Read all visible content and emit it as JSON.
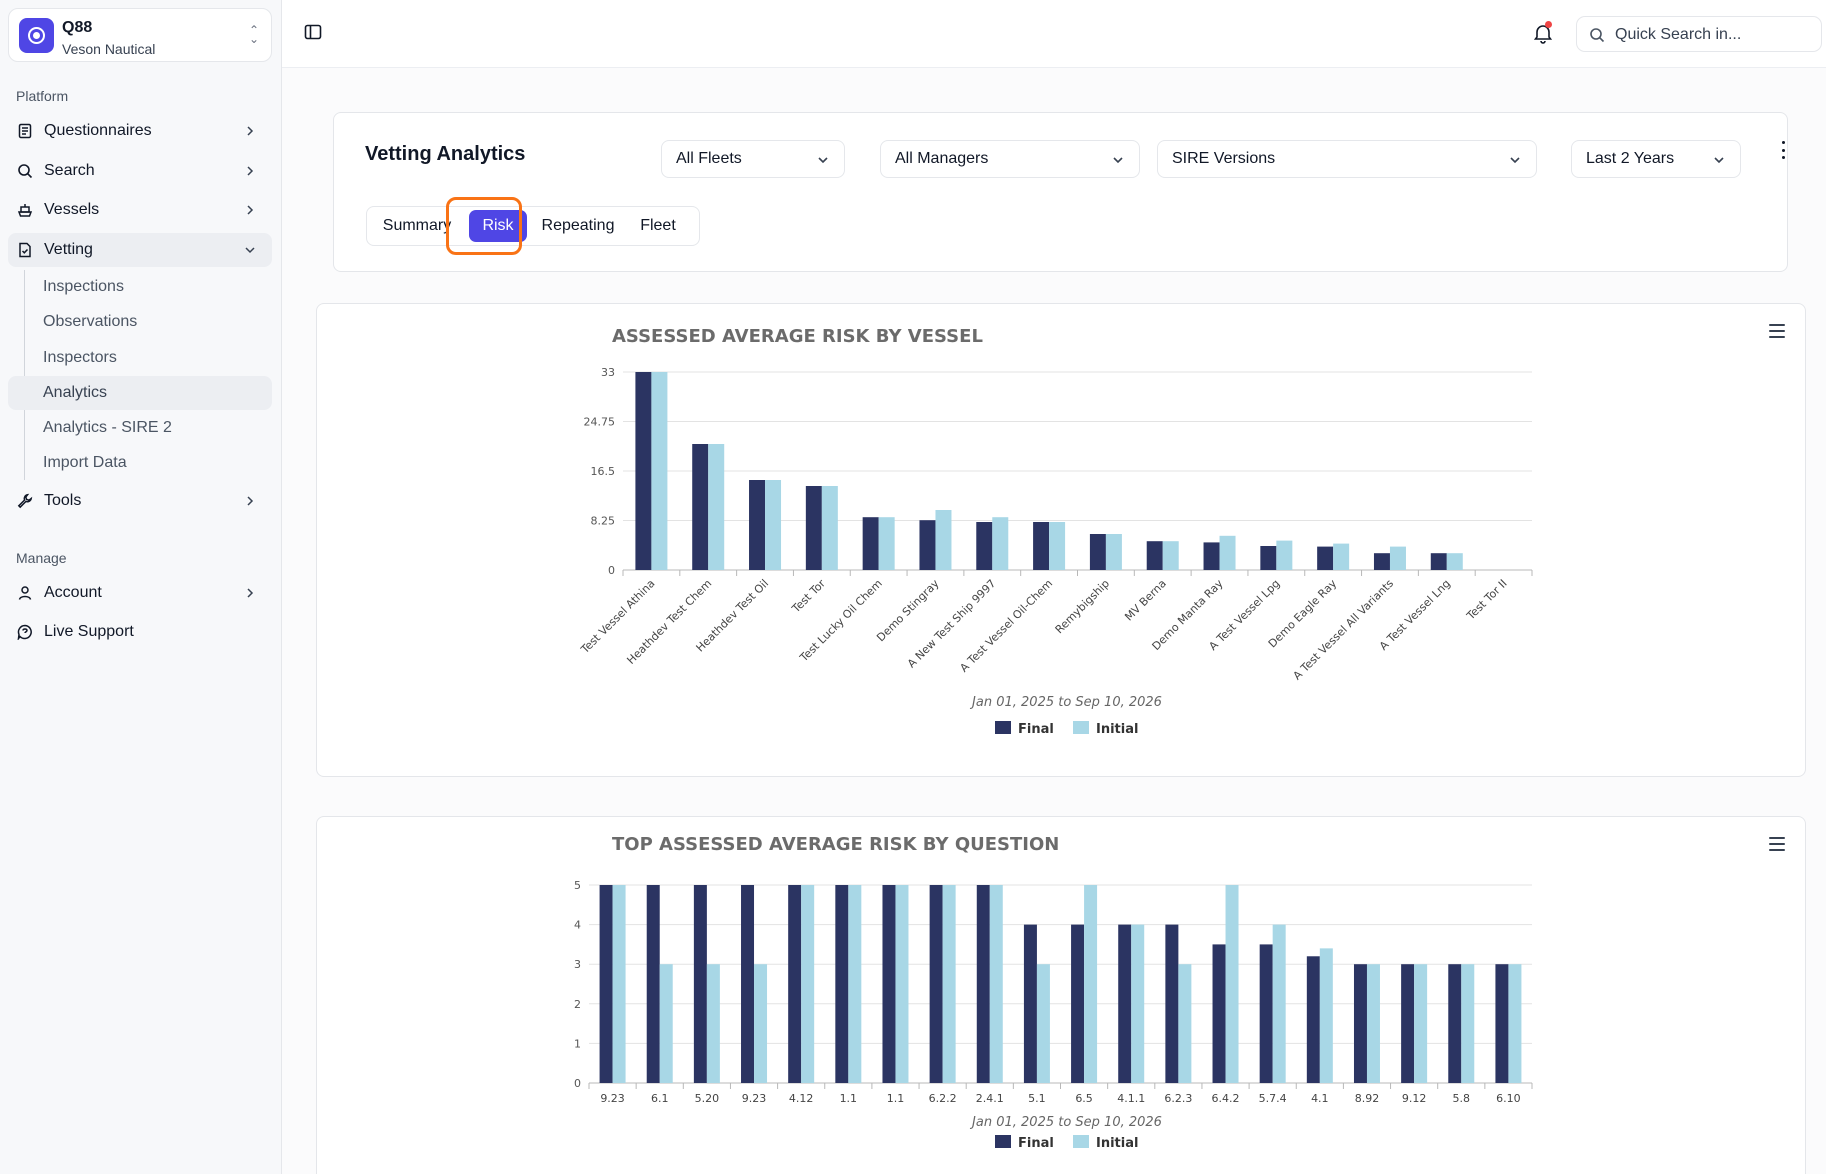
{
  "org": {
    "name": "Q88",
    "subtitle": "Veson Nautical"
  },
  "sidebar": {
    "platform_label": "Platform",
    "manage_label": "Manage",
    "items": [
      {
        "label": "Questionnaires"
      },
      {
        "label": "Search"
      },
      {
        "label": "Vessels"
      },
      {
        "label": "Vetting"
      },
      {
        "label": "Tools"
      },
      {
        "label": "Account"
      },
      {
        "label": "Live Support"
      }
    ],
    "vetting_children": [
      "Inspections",
      "Observations",
      "Inspectors",
      "Analytics",
      "Analytics - SIRE 2",
      "Import Data"
    ]
  },
  "topbar": {
    "search_placeholder": "Quick Search in..."
  },
  "page": {
    "title": "Vetting Analytics",
    "filters": [
      "All Fleets",
      "All Managers",
      "SIRE Versions",
      "Last 2 Years"
    ],
    "tabs": [
      "Summary",
      "Risk",
      "Repeating",
      "Fleet"
    ],
    "active_tab": "Risk"
  },
  "colors": {
    "final": "#2b3462",
    "initial": "#a8d7e6",
    "accent": "#4f46e5",
    "highlight": "#f97316"
  },
  "chart_data": [
    {
      "type": "bar",
      "title": "ASSESSED AVERAGE RISK BY VESSEL",
      "subtitle": "Jan 01, 2025 to Sep 10, 2026",
      "categories": [
        "Test Vessel Athina",
        "Heathdev Test Chem",
        "Heathdev Test Oil",
        "Test Tor",
        "Test Lucky Oil Chem",
        "Demo Stingray",
        "A New Test Ship 9997",
        "A Test Vessel Oil-Chem",
        "Remybigship",
        "MV Berna",
        "Demo Manta Ray",
        "A Test Vessel Lpg",
        "Demo Eagle Ray",
        "A Test Vessel All Variants",
        "A Test Vessel Lng",
        "Test Tor II"
      ],
      "series": [
        {
          "name": "Final",
          "values": [
            33,
            21,
            15,
            14,
            8.8,
            8.3,
            8,
            8,
            6,
            4.8,
            4.6,
            4,
            3.9,
            2.8,
            2.8,
            0
          ]
        },
        {
          "name": "Initial",
          "values": [
            33,
            21,
            15,
            14,
            8.8,
            10,
            8.8,
            8,
            6,
            4.8,
            5.7,
            4.9,
            4.4,
            3.9,
            2.8,
            0
          ]
        }
      ],
      "yticks": [
        "0",
        "8.25",
        "16.5",
        "24.75",
        "33"
      ],
      "ylim": [
        0,
        33
      ],
      "legend": "bottom-center",
      "grid": true
    },
    {
      "type": "bar",
      "title": "TOP ASSESSED AVERAGE RISK BY QUESTION",
      "subtitle": "Jan 01, 2025 to Sep 10, 2026",
      "categories": [
        "9.23",
        "6.1",
        "5.20",
        "9.23",
        "4.12",
        "1.1",
        "1.1",
        "6.2.2",
        "2.4.1",
        "5.1",
        "6.5",
        "4.1.1",
        "6.2.3",
        "6.4.2",
        "5.7.4",
        "4.1",
        "8.92",
        "9.12",
        "5.8",
        "6.10"
      ],
      "series": [
        {
          "name": "Final",
          "values": [
            5,
            5,
            5,
            5,
            5,
            5,
            5,
            5,
            5,
            4,
            4,
            4,
            4,
            3.5,
            3.5,
            3.2,
            3,
            3,
            3,
            3
          ]
        },
        {
          "name": "Initial",
          "values": [
            5,
            3,
            3,
            3,
            5,
            5,
            5,
            5,
            5,
            3,
            5,
            4,
            3,
            5,
            4,
            3.4,
            3,
            3,
            3,
            3
          ]
        }
      ],
      "yticks": [
        "0",
        "1",
        "2",
        "3",
        "4",
        "5"
      ],
      "ylim": [
        0,
        5
      ],
      "legend": "bottom-center",
      "grid": true
    }
  ]
}
